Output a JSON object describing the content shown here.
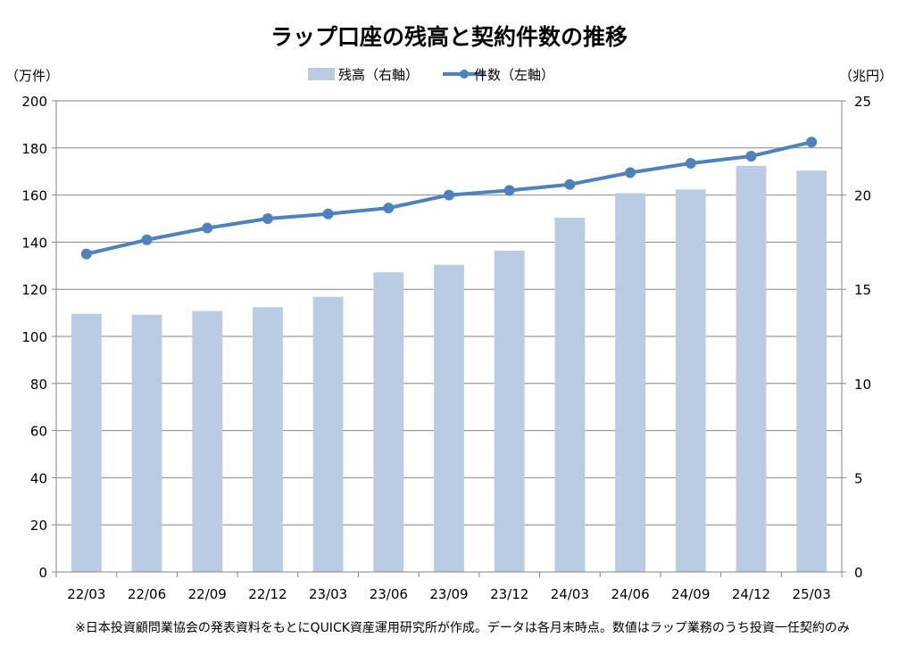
{
  "chart_data": {
    "type": "bar",
    "title": "ラップ口座の残高と契約件数の推移",
    "categories": [
      "22/03",
      "22/06",
      "22/09",
      "22/12",
      "23/03",
      "23/06",
      "23/09",
      "23/12",
      "24/03",
      "24/06",
      "24/09",
      "24/12",
      "25/03"
    ],
    "series": [
      {
        "name": "残高（右軸）",
        "type": "bar",
        "axis": "right",
        "values": [
          13.7,
          13.65,
          13.85,
          14.05,
          14.6,
          15.9,
          16.3,
          17.05,
          18.8,
          20.1,
          20.3,
          21.55,
          21.3
        ]
      },
      {
        "name": "件数（左軸）",
        "type": "line",
        "axis": "left",
        "values": [
          135,
          141,
          146,
          150,
          152,
          154.5,
          160,
          162,
          164.5,
          169.5,
          173.5,
          176.5,
          182.5
        ]
      }
    ],
    "left_axis": {
      "unit": "（万件）",
      "range": [
        0,
        200
      ],
      "ticks": [
        "0",
        "20",
        "40",
        "60",
        "80",
        "100",
        "120",
        "140",
        "160",
        "180",
        "200"
      ]
    },
    "right_axis": {
      "unit": "（兆円）",
      "range": [
        0,
        25
      ],
      "ticks": [
        "0",
        "5",
        "10",
        "15",
        "20",
        "25"
      ]
    },
    "grid": true,
    "legend_position": "top-center",
    "colors": {
      "bar": "#b9cce4",
      "line": "#4f81bd",
      "grid": "#868686",
      "axis": "#868686"
    },
    "footnote": "※日本投資顧問業協会の発表資料をもとにQUICK資産運用研究所が作成。データは各月末時点。数値はラップ業務のうち投資一任契約のみ"
  }
}
